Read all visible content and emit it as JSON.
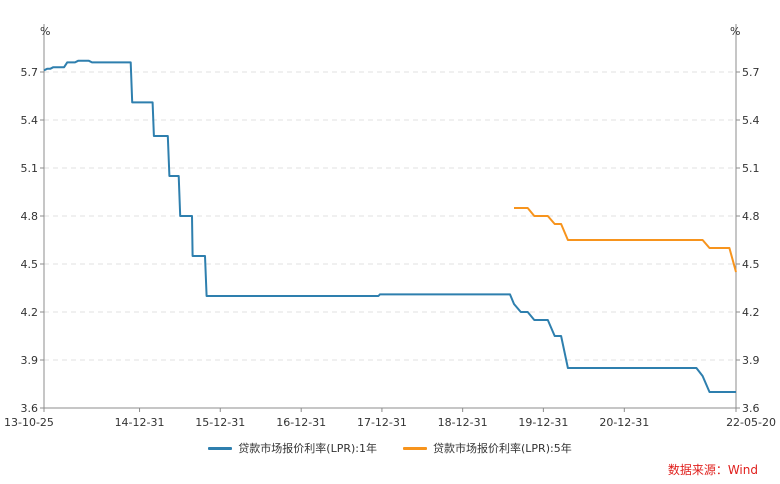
{
  "chart_data": {
    "type": "line",
    "unit_left": "%",
    "unit_right": "%",
    "x_tick_labels": [
      "13-10-25",
      "14-12-31",
      "15-12-31",
      "16-12-31",
      "17-12-31",
      "18-12-31",
      "19-12-31",
      "20-12-31",
      "22-05-20"
    ],
    "x_tick_dates": [
      "2013-10-25",
      "2014-12-31",
      "2015-12-31",
      "2016-12-31",
      "2017-12-31",
      "2018-12-31",
      "2019-12-31",
      "2020-12-31",
      "2022-05-20"
    ],
    "xlim": [
      "2013-10-25",
      "2022-05-20"
    ],
    "y_ticks": [
      3.6,
      3.9,
      4.2,
      4.5,
      4.8,
      5.1,
      5.4,
      5.7
    ],
    "y_tick_labels": [
      "3.6",
      "3.9",
      "4.2",
      "4.5",
      "4.8",
      "5.1",
      "5.4",
      "5.7"
    ],
    "ylim": [
      3.6,
      6.0
    ],
    "grid": true,
    "legend_position": "bottom",
    "series": [
      {
        "name": "贷款市场报价利率(LPR):1年",
        "color": "#2e7fae",
        "points": [
          [
            "2013-10-25",
            5.71
          ],
          [
            "2013-11-08",
            5.72
          ],
          [
            "2013-11-22",
            5.72
          ],
          [
            "2013-12-06",
            5.73
          ],
          [
            "2014-01-24",
            5.73
          ],
          [
            "2014-02-07",
            5.76
          ],
          [
            "2014-03-14",
            5.76
          ],
          [
            "2014-03-28",
            5.77
          ],
          [
            "2014-05-16",
            5.77
          ],
          [
            "2014-05-30",
            5.76
          ],
          [
            "2014-11-21",
            5.76
          ],
          [
            "2014-11-28",
            5.51
          ],
          [
            "2015-02-28",
            5.51
          ],
          [
            "2015-03-06",
            5.3
          ],
          [
            "2015-05-08",
            5.3
          ],
          [
            "2015-05-15",
            5.05
          ],
          [
            "2015-06-26",
            5.05
          ],
          [
            "2015-07-03",
            4.8
          ],
          [
            "2015-08-25",
            4.8
          ],
          [
            "2015-08-28",
            4.55
          ],
          [
            "2015-10-23",
            4.55
          ],
          [
            "2015-10-30",
            4.3
          ],
          [
            "2017-12-15",
            4.3
          ],
          [
            "2017-12-22",
            4.31
          ],
          [
            "2019-08-02",
            4.31
          ],
          [
            "2019-08-20",
            4.25
          ],
          [
            "2019-09-20",
            4.2
          ],
          [
            "2019-10-21",
            4.2
          ],
          [
            "2019-11-20",
            4.15
          ],
          [
            "2020-01-20",
            4.15
          ],
          [
            "2020-02-20",
            4.05
          ],
          [
            "2020-03-20",
            4.05
          ],
          [
            "2020-04-20",
            3.85
          ],
          [
            "2021-11-22",
            3.85
          ],
          [
            "2021-12-20",
            3.8
          ],
          [
            "2022-01-20",
            3.7
          ],
          [
            "2022-05-20",
            3.7
          ]
        ]
      },
      {
        "name": "贷款市场报价利率(LPR):5年",
        "color": "#f7941d",
        "points": [
          [
            "2019-08-20",
            4.85
          ],
          [
            "2019-10-10",
            4.85
          ],
          [
            "2019-10-21",
            4.85
          ],
          [
            "2019-11-20",
            4.8
          ],
          [
            "2020-01-20",
            4.8
          ],
          [
            "2020-02-20",
            4.75
          ],
          [
            "2020-03-20",
            4.75
          ],
          [
            "2020-04-20",
            4.65
          ],
          [
            "2021-11-22",
            4.65
          ],
          [
            "2021-12-20",
            4.65
          ],
          [
            "2022-01-20",
            4.6
          ],
          [
            "2022-04-20",
            4.6
          ],
          [
            "2022-05-20",
            4.45
          ]
        ]
      }
    ]
  },
  "source_text": "数据来源：Wind"
}
